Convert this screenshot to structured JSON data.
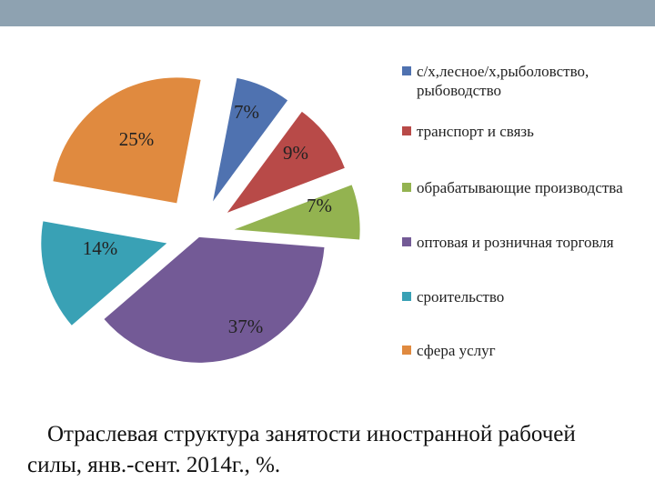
{
  "chart_data": {
    "type": "pie",
    "title": "Отраслевая структура занятости иностранной рабочей силы, янв.-сент. 2014г., %.",
    "slices": [
      {
        "name": "с/х,лесное/х,рыболовство, рыбоводство",
        "value": 7,
        "label": "7%",
        "color": "#4f72b0",
        "explode": 40
      },
      {
        "name": "транспорт и связь",
        "value": 9,
        "label": "9%",
        "color": "#b84a48",
        "explode": 40
      },
      {
        "name": "обрабатывающие производства",
        "value": 7,
        "label": "7%",
        "color": "#93b350",
        "explode": 40
      },
      {
        "name": "оптовая и розничная торговля",
        "value": 37,
        "label": "37%",
        "color": "#735a96",
        "explode": 3
      },
      {
        "name": "сроительство",
        "value": 14,
        "label": "14%",
        "color": "#39a1b5",
        "explode": 36
      },
      {
        "name": "сфера услуг",
        "value": 25,
        "label": "25%",
        "color": "#e08a3f",
        "explode": 42
      }
    ],
    "legend_position": "right"
  }
}
